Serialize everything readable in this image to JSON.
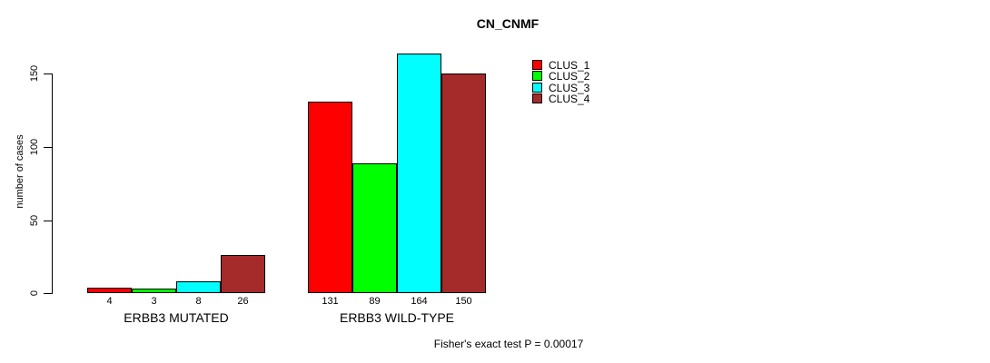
{
  "chart_data": {
    "type": "bar",
    "title": "CN_CNMF",
    "ylabel": "number of cases",
    "xlabel": "",
    "categories": [
      "ERBB3 MUTATED",
      "ERBB3 WILD-TYPE"
    ],
    "series": [
      {
        "name": "CLUS_1",
        "color": "#ff0000",
        "values": [
          4,
          131
        ]
      },
      {
        "name": "CLUS_2",
        "color": "#00ff00",
        "values": [
          3,
          89
        ]
      },
      {
        "name": "CLUS_3",
        "color": "#00ffff",
        "values": [
          8,
          164
        ]
      },
      {
        "name": "CLUS_4",
        "color": "#a52a2a",
        "values": [
          26,
          150
        ]
      }
    ],
    "bar_value_labels": [
      [
        4,
        3,
        8,
        26
      ],
      [
        131,
        89,
        164,
        150
      ]
    ],
    "yticks": [
      0,
      50,
      100,
      150
    ],
    "ylim": [
      0,
      170
    ],
    "grid": false,
    "legend": {
      "position": "upper-right-of-bars",
      "entries": [
        "CLUS_1",
        "CLUS_2",
        "CLUS_3",
        "CLUS_4"
      ]
    },
    "annotation": "Fisher's exact test P = 0.00017"
  }
}
